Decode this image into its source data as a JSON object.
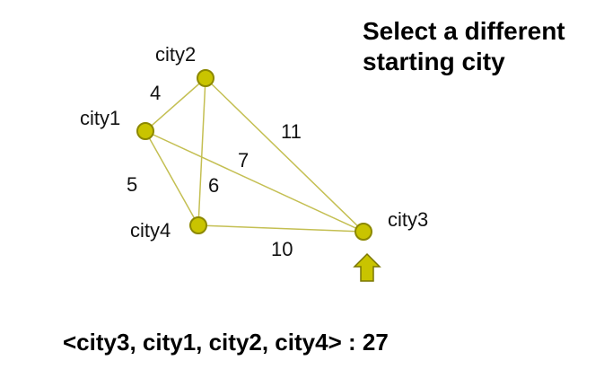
{
  "heading": {
    "line1": "Select a different",
    "line2": "starting city"
  },
  "nodes": [
    {
      "id": "city1",
      "label": "city1"
    },
    {
      "id": "city2",
      "label": "city2"
    },
    {
      "id": "city3",
      "label": "city3"
    },
    {
      "id": "city4",
      "label": "city4"
    }
  ],
  "edges": [
    {
      "from": "city1",
      "to": "city2",
      "weight": "4"
    },
    {
      "from": "city1",
      "to": "city3",
      "weight": "7"
    },
    {
      "from": "city1",
      "to": "city4",
      "weight": "5"
    },
    {
      "from": "city2",
      "to": "city3",
      "weight": "11"
    },
    {
      "from": "city2",
      "to": "city4",
      "weight": "6"
    },
    {
      "from": "city4",
      "to": "city3",
      "weight": "10"
    }
  ],
  "start_marker": {
    "target": "city3",
    "icon": "up-arrow-icon"
  },
  "result": {
    "text": "<city3, city1, city2, city4> : 27"
  },
  "colors": {
    "node_fill": "#c9c400",
    "node_stroke": "#8c8800",
    "edge": "#c4bf52",
    "arrow_fill": "#c9c400",
    "arrow_stroke": "#7a7600"
  }
}
